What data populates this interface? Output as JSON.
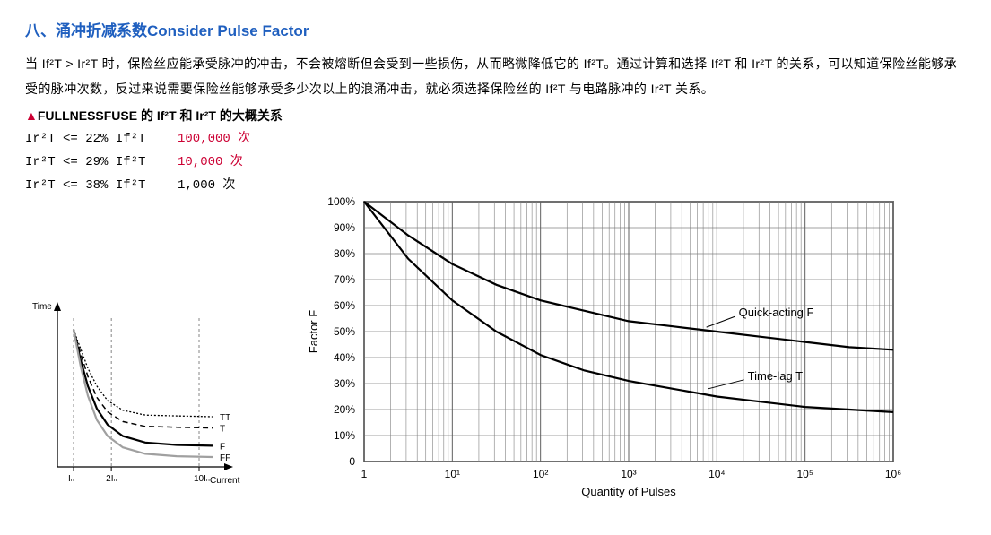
{
  "heading": "八、涌冲折减系数Consider Pulse Factor",
  "paragraph": "当 If²T > Ir²T 时，保险丝应能承受脉冲的冲击，不会被熔断但会受到一些损伤，从而略微降低它的 If²T。通过计算和选择 If²T 和 Ir²T 的关系，可以知道保险丝能够承受的脉冲次数，反过来说需要保险丝能够承受多少次以上的浪涌冲击，就必须选择保险丝的 If²T 与电路脉冲的 Ir²T 关系。",
  "subheading_tri": "▲",
  "subheading_text": "FULLNESSFUSE 的 If²T 和 Ir²T 的大概关系",
  "relations": [
    {
      "left": "Ir²T <= 22% If²T",
      "right": "100,000 次",
      "red": true
    },
    {
      "left": "Ir²T <= 29% If²T",
      "right": "10,000 次",
      "red": true
    },
    {
      "left": "Ir²T <= 38% If²T",
      "right": "1,000 次",
      "red": false
    }
  ],
  "chart_small": {
    "y_axis_label": "Time",
    "x_axis_label": "Current",
    "x_ticks": [
      "Iₙ",
      "2Iₙ",
      "10Iₙ"
    ],
    "curves": [
      {
        "name": "TT",
        "label": "TT",
        "stroke": "#000000",
        "dash": "2,2",
        "width": 1.3
      },
      {
        "name": "T",
        "label": "T",
        "stroke": "#000000",
        "dash": "6,4",
        "width": 1.5
      },
      {
        "name": "F",
        "label": "F",
        "stroke": "#000000",
        "dash": "",
        "width": 2.2
      },
      {
        "name": "FF",
        "label": "FF",
        "stroke": "#a0a0a0",
        "dash": "",
        "width": 2.2
      }
    ],
    "background": "#ffffff",
    "axis_color": "#000000",
    "font_size": 10
  },
  "chart_large": {
    "y_axis_label": "Factor F",
    "x_axis_label": "Quantity of Pulses",
    "y_ticks": [
      "0",
      "10%",
      "20%",
      "30%",
      "40%",
      "50%",
      "60%",
      "70%",
      "80%",
      "90%",
      "100%"
    ],
    "x_ticks": [
      "1",
      "10¹",
      "10²",
      "10³",
      "10⁴",
      "10⁵",
      "10⁶"
    ],
    "curve_labels": [
      "Quick-acting F",
      "Time-lag T"
    ],
    "series": [
      {
        "name": "Quick-acting F",
        "points_decade_pct": [
          [
            0,
            100
          ],
          [
            0.5,
            87
          ],
          [
            1,
            76
          ],
          [
            1.5,
            68
          ],
          [
            2,
            62
          ],
          [
            2.5,
            58
          ],
          [
            3,
            54
          ],
          [
            3.5,
            52
          ],
          [
            4,
            50
          ],
          [
            4.5,
            48
          ],
          [
            5,
            46
          ],
          [
            5.5,
            44
          ],
          [
            6,
            43
          ]
        ],
        "stroke": "#000000",
        "width": 2.2
      },
      {
        "name": "Time-lag T",
        "points_decade_pct": [
          [
            0,
            100
          ],
          [
            0.5,
            78
          ],
          [
            1,
            62
          ],
          [
            1.5,
            50
          ],
          [
            2,
            41
          ],
          [
            2.5,
            35
          ],
          [
            3,
            31
          ],
          [
            3.5,
            28
          ],
          [
            4,
            25
          ],
          [
            4.5,
            23
          ],
          [
            5,
            21
          ],
          [
            5.5,
            20
          ],
          [
            6,
            19
          ]
        ],
        "stroke": "#000000",
        "width": 2.2
      }
    ],
    "grid_color": "#808080",
    "major_grid_color": "#606060",
    "border_color": "#000000",
    "background": "#ffffff",
    "label_fontsize": 13,
    "tick_fontsize": 12
  }
}
